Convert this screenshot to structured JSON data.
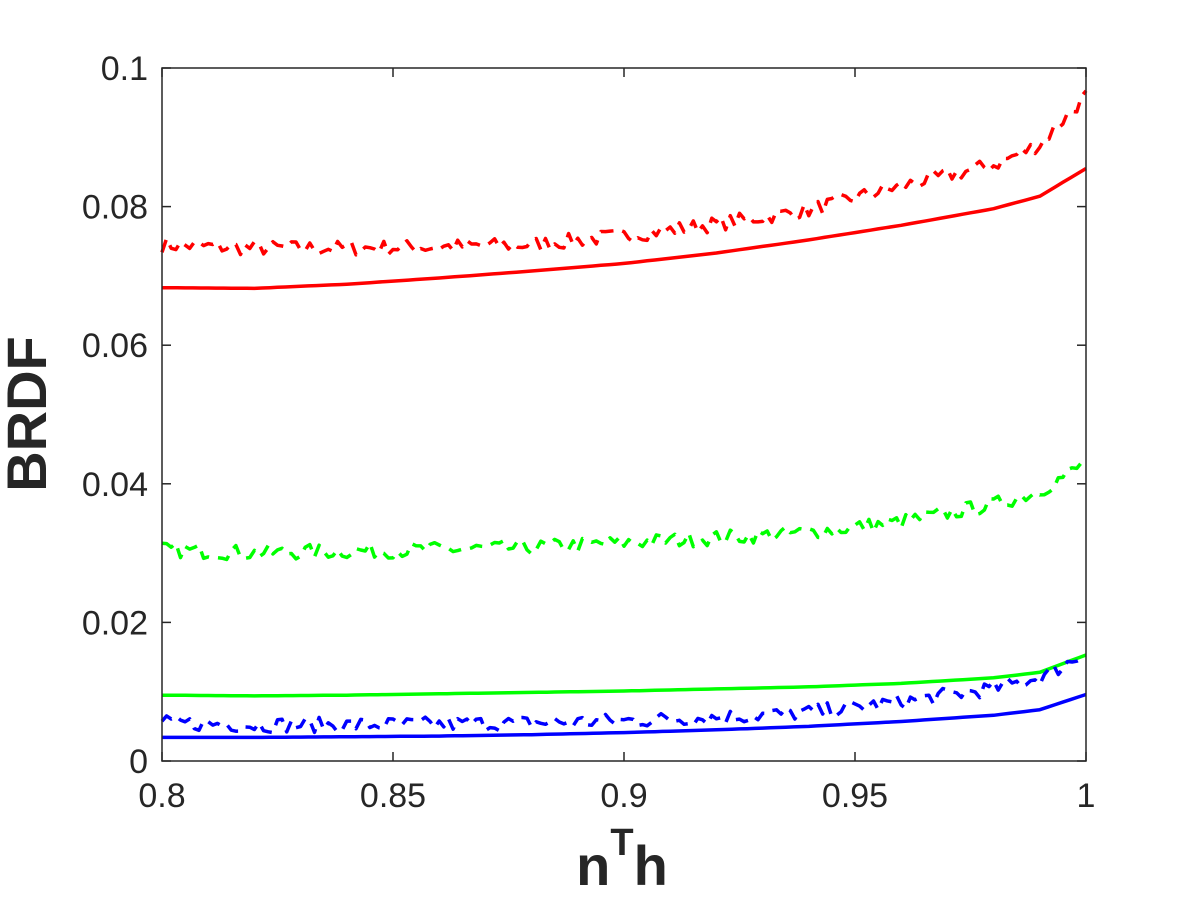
{
  "chart_data": {
    "type": "line",
    "title": "",
    "xlabel_base": "n",
    "xlabel_sup": "T",
    "xlabel_end": "h",
    "ylabel": "BRDF",
    "xlim": [
      0.8,
      1.0
    ],
    "ylim": [
      0,
      0.1
    ],
    "xticks": [
      0.8,
      0.85,
      0.9,
      0.95,
      1.0
    ],
    "xtick_labels": [
      "0.8",
      "0.85",
      "0.9",
      "0.95",
      "1"
    ],
    "yticks": [
      0,
      0.02,
      0.04,
      0.06,
      0.08,
      0.1
    ],
    "ytick_labels": [
      "0",
      "0.02",
      "0.04",
      "0.06",
      "0.08",
      "0.1"
    ],
    "grid": false,
    "box": true,
    "legend": "none",
    "x": [
      0.8,
      0.82,
      0.84,
      0.86,
      0.88,
      0.9,
      0.92,
      0.94,
      0.96,
      0.98,
      0.99,
      1.0
    ],
    "series": [
      {
        "color": "#ff0000",
        "style": "solid",
        "values": [
          0.0683,
          0.0682,
          0.0688,
          0.0697,
          0.0707,
          0.0718,
          0.0733,
          0.0752,
          0.0773,
          0.0797,
          0.0815,
          0.0855
        ]
      },
      {
        "color": "#ff0000",
        "style": "dashed",
        "noisy": true,
        "values": [
          0.0745,
          0.074,
          0.074,
          0.0742,
          0.0745,
          0.0758,
          0.0775,
          0.0795,
          0.083,
          0.086,
          0.089,
          0.096
        ]
      },
      {
        "color": "#00ff00",
        "style": "solid",
        "values": [
          0.0095,
          0.0094,
          0.0095,
          0.0097,
          0.0099,
          0.0101,
          0.0104,
          0.0107,
          0.0112,
          0.012,
          0.0128,
          0.0153
        ]
      },
      {
        "color": "#00ff00",
        "style": "dashed",
        "noisy": true,
        "values": [
          0.0305,
          0.03,
          0.0303,
          0.0305,
          0.0308,
          0.0315,
          0.0322,
          0.033,
          0.0345,
          0.037,
          0.039,
          0.043
        ]
      },
      {
        "color": "#0000ff",
        "style": "solid",
        "values": [
          0.0034,
          0.0034,
          0.0035,
          0.0036,
          0.0038,
          0.0041,
          0.0045,
          0.005,
          0.0057,
          0.0066,
          0.0074,
          0.0096
        ]
      },
      {
        "color": "#0000ff",
        "style": "dashed",
        "noisy": true,
        "values": [
          0.0055,
          0.0052,
          0.0052,
          0.0053,
          0.0055,
          0.0058,
          0.0063,
          0.007,
          0.0085,
          0.0105,
          0.012,
          0.0155
        ]
      }
    ],
    "colors": {
      "axis": "#262626",
      "background": "#ffffff"
    }
  }
}
